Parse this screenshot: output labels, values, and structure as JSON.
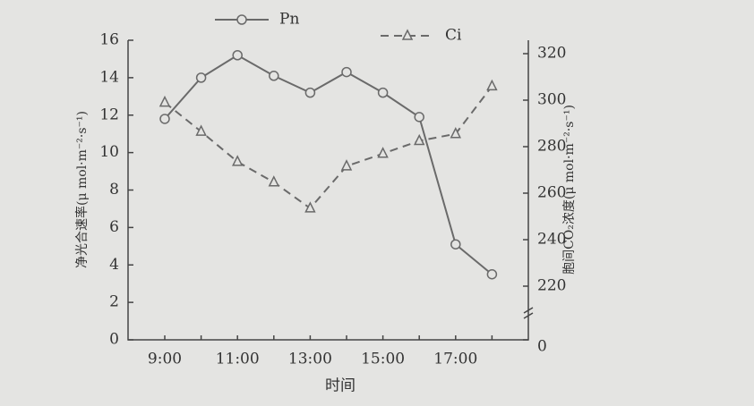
{
  "chart_data": {
    "type": "line",
    "x_label": "时间",
    "y_label": "净光合速率(μ mol·m⁻²·s⁻¹)",
    "y2_label": "胞间CO₂浓度(μ mol·m⁻²·s⁻¹)",
    "categories": [
      "9:00",
      null,
      "11:00",
      null,
      "13:00",
      null,
      "15:00",
      null,
      "17:00",
      null
    ],
    "series": [
      {
        "name": "Pn",
        "color": "#6a6a6a",
        "marker": "circle",
        "dash": false,
        "values": [
          11.8,
          14.0,
          15.2,
          14.1,
          13.2,
          14.3,
          13.2,
          11.9,
          5.1,
          3.5
        ]
      },
      {
        "name": "Ci",
        "color": "#6a6a6a",
        "marker": "triangle",
        "dash": true,
        "axis": "y2",
        "values": [
          299,
          286.5,
          273.5,
          264.7,
          253.5,
          271.6,
          277,
          282.5,
          285.5,
          306
        ]
      }
    ],
    "ylim": [
      0,
      16
    ],
    "yticks": [
      0,
      2,
      4,
      6,
      8,
      10,
      12,
      14,
      16
    ],
    "y2lim": [
      200,
      320
    ],
    "y2ticks": [
      {
        "value": 200,
        "label": "0"
      },
      220,
      240,
      260,
      280,
      300,
      320
    ],
    "grid": false
  }
}
